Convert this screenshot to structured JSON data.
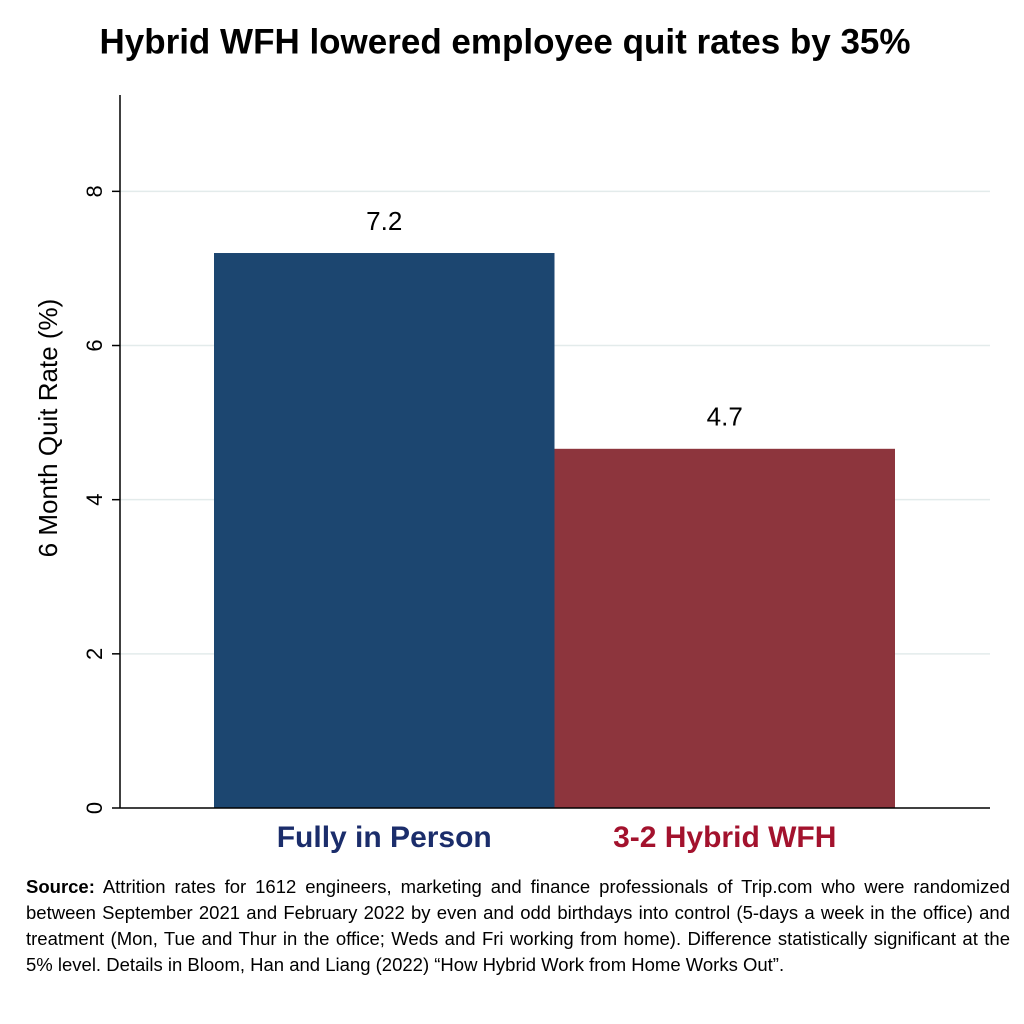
{
  "chart_data": {
    "type": "bar",
    "title": "Hybrid WFH lowered employee quit rates by 35%",
    "ylabel": "6 Month Quit Rate (%)",
    "categories": [
      "Fully in Person",
      "3-2 Hybrid WFH"
    ],
    "category_colors": [
      "#1b2d6b",
      "#a3122d"
    ],
    "values": [
      7.2,
      4.66
    ],
    "value_labels": [
      "7.2",
      "4.7"
    ],
    "colors": [
      "#1c4670",
      "#8d353d"
    ],
    "ylim": [
      0,
      9.25
    ],
    "yticks": [
      0,
      2,
      4,
      6,
      8
    ],
    "grid": true,
    "source_label": "Source:",
    "source_text": "Attrition rates for 1612 engineers, marketing and finance professionals of Trip.com who were randomized between September 2021 and February 2022 by even and odd birthdays into control (5-days a week in the office) and treatment (Mon, Tue and Thur in the office; Weds and Fri working from home). Difference statistically significant at the 5% level. Details in Bloom, Han and Liang (2022) “How Hybrid Work from Home Works Out”."
  }
}
